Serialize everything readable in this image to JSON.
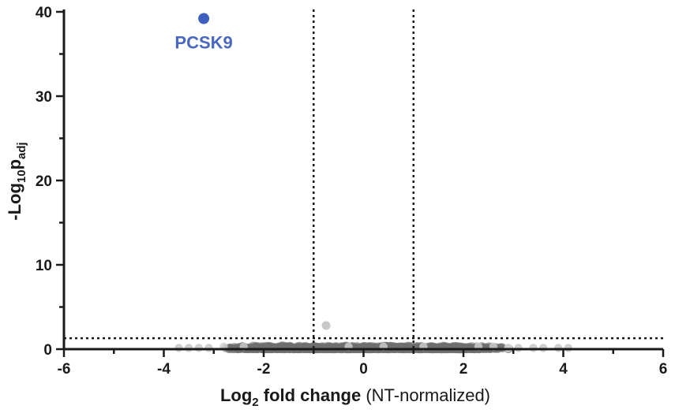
{
  "chart_data": {
    "type": "scatter",
    "title": "",
    "xlabel": {
      "main": "Log",
      "sub": "2",
      "bold_rest": " fold change",
      "normal_rest": " (NT-normalized)"
    },
    "ylabel": {
      "main": "-Log",
      "sub1": "10",
      "mid": "p",
      "sub2": "adj"
    },
    "xlim": [
      -6,
      6
    ],
    "ylim": [
      0,
      40
    ],
    "x_ticks": [
      "-6",
      "-4",
      "-2",
      "0",
      "2",
      "4",
      "6"
    ],
    "y_ticks": [
      "0",
      "10",
      "20",
      "30",
      "40"
    ],
    "x_tick_values": [
      -6,
      -4,
      -2,
      0,
      2,
      4,
      6
    ],
    "y_tick_values": [
      0,
      10,
      20,
      30,
      40
    ],
    "thresholds": {
      "x": [
        -1,
        1
      ],
      "y": 1.3
    },
    "highlight": {
      "label": "PCSK9",
      "x": -3.2,
      "y": 39.2,
      "color": "#3f5fbf"
    },
    "significant_grey_points": [
      {
        "x": -0.75,
        "y": 2.8
      }
    ],
    "background_points": {
      "dense_x_range": [
        -3.0,
        3.0
      ],
      "sparse_x": [
        -3.7,
        -3.5,
        -3.3,
        -3.1,
        2.9,
        3.1,
        3.4,
        3.6,
        3.9,
        4.1
      ],
      "y_range": [
        0,
        0.45
      ],
      "color_dense": "#707070",
      "color_sparse": "#cfcfcf"
    },
    "grid": false,
    "legend": "none",
    "colors": {
      "axis": "#1a1a1a",
      "threshold_line": "#1a1a1a",
      "grey_point": "#c8c8c8"
    }
  }
}
